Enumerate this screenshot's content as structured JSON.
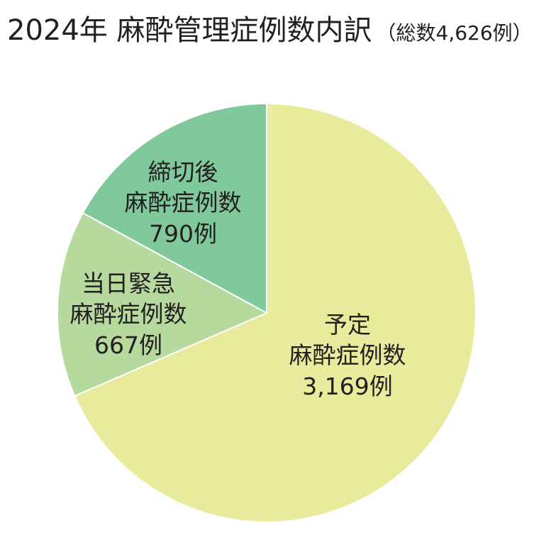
{
  "chart_data": {
    "type": "pie",
    "title": "2024年 麻酔管理症例数内訳",
    "subtitle": "（総数4,626例）",
    "legend": "none",
    "slices": [
      {
        "label": [
          "予定",
          "麻酔症例数"
        ],
        "value": 3169,
        "value_label": "3,169例",
        "color": "#e8eb9b"
      },
      {
        "label": [
          "当日緊急",
          "麻酔症例数"
        ],
        "value": 667,
        "value_label": "667例",
        "color": "#b6d99d"
      },
      {
        "label": [
          "締切後",
          "麻酔症例数"
        ],
        "value": 790,
        "value_label": "790例",
        "color": "#80c99c"
      }
    ]
  }
}
